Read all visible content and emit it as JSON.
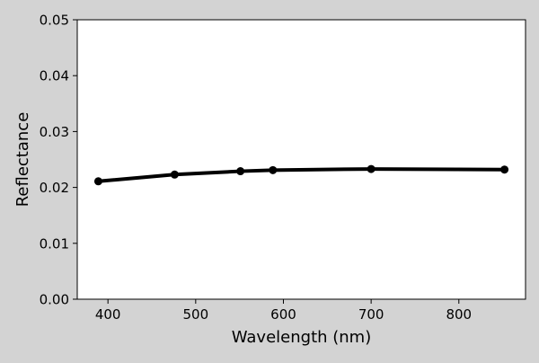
{
  "chart_data": {
    "type": "line",
    "title": "",
    "xlabel": "Wavelength (nm)",
    "ylabel": "Reflectance",
    "xlim": [
      365,
      876
    ],
    "ylim": [
      0.0,
      0.05
    ],
    "x_ticks": [
      400,
      500,
      600,
      700,
      800
    ],
    "x_tick_labels": [
      "400",
      "500",
      "600",
      "700",
      "800"
    ],
    "y_ticks": [
      0.0,
      0.01,
      0.02,
      0.03,
      0.04,
      0.05
    ],
    "y_tick_labels": [
      "0.00",
      "0.01",
      "0.02",
      "0.03",
      "0.04",
      "0.05"
    ],
    "grid": false,
    "legend": "none",
    "series": [
      {
        "x": [
          389,
          476,
          551,
          588,
          700,
          852
        ],
        "y": [
          0.0211,
          0.0223,
          0.0229,
          0.0231,
          0.0233,
          0.0232
        ],
        "color": "#000000",
        "marker": "circle"
      }
    ]
  },
  "colors": {
    "figure_background": "#d3d3d3",
    "plot_background": "#ffffff",
    "line": "#000000"
  }
}
